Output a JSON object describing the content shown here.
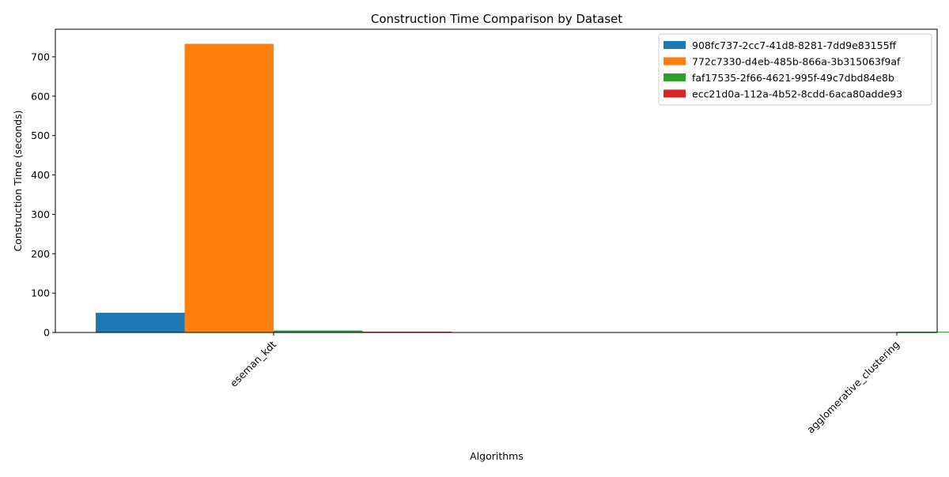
{
  "chart_data": {
    "type": "bar",
    "title": "Construction Time Comparison by Dataset",
    "xlabel": "Algorithms",
    "ylabel": "Construction Time (seconds)",
    "categories": [
      "eseman_kdt",
      "agglomerative_clustering"
    ],
    "series": [
      {
        "name": "908fc737-2cc7-41d8-8281-7dd9e83155ff",
        "color": "#1f77b4",
        "values": [
          50,
          0
        ]
      },
      {
        "name": "772c7330-d4eb-485b-866a-3b315063f9af",
        "color": "#ff7f0e",
        "values": [
          733,
          0
        ]
      },
      {
        "name": "faf17535-2f66-4621-995f-49c7dbd84e8b",
        "color": "#2ca02c",
        "values": [
          5,
          2
        ]
      },
      {
        "name": "ecc21d0a-112a-4b52-8cdd-6aca80adde93",
        "color": "#d62728",
        "values": [
          2,
          0
        ]
      }
    ],
    "ylim": [
      0,
      770
    ],
    "yticks": [
      0,
      100,
      200,
      300,
      400,
      500,
      600,
      700
    ],
    "grid": false,
    "legend_position": "top-right"
  }
}
